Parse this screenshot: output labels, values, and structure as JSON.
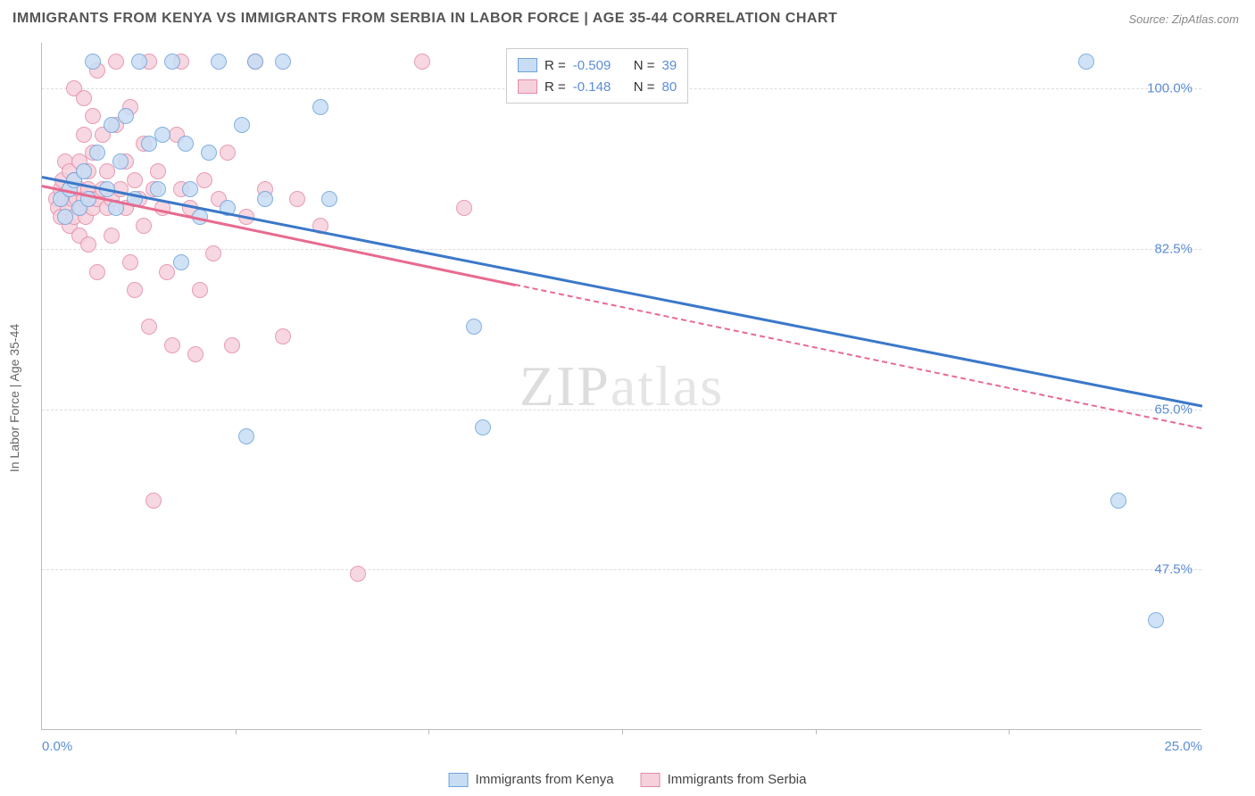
{
  "title": "IMMIGRANTS FROM KENYA VS IMMIGRANTS FROM SERBIA IN LABOR FORCE | AGE 35-44 CORRELATION CHART",
  "source": "Source: ZipAtlas.com",
  "yaxis_title": "In Labor Force | Age 35-44",
  "watermark": "ZIPatlas",
  "chart": {
    "type": "scatter",
    "xlim": [
      0,
      25
    ],
    "ylim": [
      30,
      105
    ],
    "xticks": [
      0,
      25
    ],
    "xtick_labels": [
      "0.0%",
      "25.0%"
    ],
    "yticks": [
      47.5,
      65.0,
      82.5,
      100.0
    ],
    "ytick_labels": [
      "47.5%",
      "65.0%",
      "82.5%",
      "100.0%"
    ],
    "x_minor_ticks": [
      4.17,
      8.33,
      12.5,
      16.67,
      20.83
    ],
    "grid_color": "#dddddd",
    "background_color": "#ffffff",
    "axis_color": "#bbbbbb",
    "marker_radius": 9,
    "marker_stroke_width": 1.5,
    "series": [
      {
        "name": "Immigrants from Kenya",
        "fill": "#c8ddf4",
        "stroke": "#6fa3dd",
        "line_color": "#3b78c9",
        "R": "-0.509",
        "N": "39",
        "trend": {
          "x1": 0,
          "y1": 90.5,
          "x2": 25,
          "y2": 65.5,
          "solid_until_x": 25
        },
        "points": [
          [
            0.4,
            88
          ],
          [
            0.5,
            86
          ],
          [
            0.6,
            89
          ],
          [
            0.7,
            90
          ],
          [
            0.8,
            87
          ],
          [
            0.9,
            91
          ],
          [
            1.0,
            88
          ],
          [
            1.1,
            103
          ],
          [
            1.2,
            93
          ],
          [
            1.4,
            89
          ],
          [
            1.5,
            96
          ],
          [
            1.6,
            87
          ],
          [
            1.7,
            92
          ],
          [
            1.8,
            97
          ],
          [
            2.0,
            88
          ],
          [
            2.1,
            103
          ],
          [
            2.3,
            94
          ],
          [
            2.5,
            89
          ],
          [
            2.6,
            95
          ],
          [
            2.8,
            103
          ],
          [
            3.0,
            81
          ],
          [
            3.1,
            94
          ],
          [
            3.2,
            89
          ],
          [
            3.4,
            86
          ],
          [
            3.6,
            93
          ],
          [
            3.8,
            103
          ],
          [
            4.0,
            87
          ],
          [
            4.3,
            96
          ],
          [
            4.4,
            62
          ],
          [
            4.6,
            103
          ],
          [
            4.8,
            88
          ],
          [
            5.2,
            103
          ],
          [
            6.0,
            98
          ],
          [
            6.2,
            88
          ],
          [
            9.3,
            74
          ],
          [
            9.5,
            63
          ],
          [
            22.5,
            103
          ],
          [
            23.2,
            55
          ],
          [
            24.0,
            42
          ]
        ]
      },
      {
        "name": "Immigrants from Serbia",
        "fill": "#f6d1dc",
        "stroke": "#e48ba6",
        "line_color": "#e86a8f",
        "R": "-0.148",
        "N": "80",
        "trend": {
          "x1": 0,
          "y1": 89.5,
          "x2": 25,
          "y2": 63.0,
          "solid_until_x": 10.2
        },
        "points": [
          [
            0.3,
            88
          ],
          [
            0.35,
            87
          ],
          [
            0.4,
            89
          ],
          [
            0.4,
            86
          ],
          [
            0.45,
            90
          ],
          [
            0.5,
            88
          ],
          [
            0.5,
            92
          ],
          [
            0.55,
            87
          ],
          [
            0.6,
            89
          ],
          [
            0.6,
            91
          ],
          [
            0.6,
            85
          ],
          [
            0.65,
            88
          ],
          [
            0.7,
            86
          ],
          [
            0.7,
            90
          ],
          [
            0.7,
            100
          ],
          [
            0.75,
            88
          ],
          [
            0.8,
            89
          ],
          [
            0.8,
            84
          ],
          [
            0.8,
            92
          ],
          [
            0.85,
            87
          ],
          [
            0.9,
            88
          ],
          [
            0.9,
            95
          ],
          [
            0.9,
            99
          ],
          [
            0.95,
            86
          ],
          [
            1.0,
            89
          ],
          [
            1.0,
            83
          ],
          [
            1.0,
            91
          ],
          [
            1.05,
            88
          ],
          [
            1.1,
            87
          ],
          [
            1.1,
            93
          ],
          [
            1.1,
            97
          ],
          [
            1.2,
            88
          ],
          [
            1.2,
            102
          ],
          [
            1.2,
            80
          ],
          [
            1.3,
            89
          ],
          [
            1.3,
            95
          ],
          [
            1.4,
            87
          ],
          [
            1.4,
            91
          ],
          [
            1.5,
            88
          ],
          [
            1.5,
            84
          ],
          [
            1.6,
            103
          ],
          [
            1.6,
            96
          ],
          [
            1.7,
            89
          ],
          [
            1.8,
            87
          ],
          [
            1.8,
            92
          ],
          [
            1.9,
            98
          ],
          [
            1.9,
            81
          ],
          [
            2.0,
            90
          ],
          [
            2.0,
            78
          ],
          [
            2.1,
            88
          ],
          [
            2.2,
            94
          ],
          [
            2.2,
            85
          ],
          [
            2.3,
            103
          ],
          [
            2.3,
            74
          ],
          [
            2.4,
            89
          ],
          [
            2.4,
            55
          ],
          [
            2.5,
            91
          ],
          [
            2.6,
            87
          ],
          [
            2.7,
            80
          ],
          [
            2.8,
            72
          ],
          [
            2.9,
            95
          ],
          [
            3.0,
            89
          ],
          [
            3.0,
            103
          ],
          [
            3.2,
            87
          ],
          [
            3.3,
            71
          ],
          [
            3.4,
            78
          ],
          [
            3.5,
            90
          ],
          [
            3.7,
            82
          ],
          [
            3.8,
            88
          ],
          [
            4.0,
            93
          ],
          [
            4.1,
            72
          ],
          [
            4.4,
            86
          ],
          [
            4.6,
            103
          ],
          [
            4.8,
            89
          ],
          [
            5.2,
            73
          ],
          [
            5.5,
            88
          ],
          [
            6.0,
            85
          ],
          [
            6.8,
            47
          ],
          [
            8.2,
            103
          ],
          [
            9.1,
            87
          ]
        ]
      }
    ]
  },
  "legend": {
    "R_label": "R =",
    "N_label": "N ="
  },
  "bottom_legend": [
    "Immigrants from Kenya",
    "Immigrants from Serbia"
  ]
}
